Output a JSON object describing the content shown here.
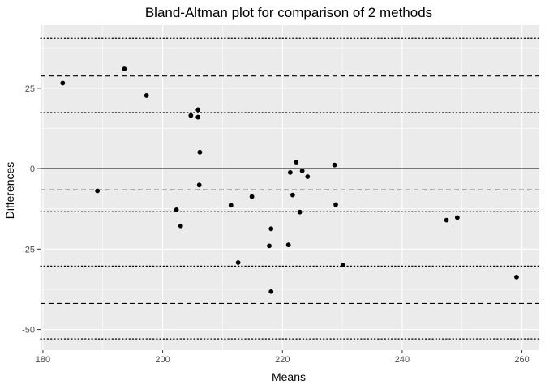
{
  "chart_data": {
    "type": "scatter",
    "title": "Bland-Altman plot for comparison of 2 methods",
    "xlabel": "Means",
    "ylabel": "Differences",
    "xlim": [
      179.6,
      262.9
    ],
    "ylim": [
      -56.4,
      44.6
    ],
    "x_ticks": [
      180,
      200,
      220,
      240,
      260
    ],
    "y_ticks": [
      -50,
      -25,
      0,
      25
    ],
    "grid": true,
    "points": [
      {
        "x": 183.3,
        "y": 26.6
      },
      {
        "x": 189.1,
        "y": -6.9
      },
      {
        "x": 193.6,
        "y": 31.0
      },
      {
        "x": 197.3,
        "y": 22.7
      },
      {
        "x": 202.3,
        "y": -12.8
      },
      {
        "x": 203.0,
        "y": -17.8
      },
      {
        "x": 204.7,
        "y": 16.5
      },
      {
        "x": 205.9,
        "y": 18.3
      },
      {
        "x": 205.9,
        "y": 16.0
      },
      {
        "x": 206.1,
        "y": -5.1
      },
      {
        "x": 206.2,
        "y": 5.1
      },
      {
        "x": 211.4,
        "y": -11.4
      },
      {
        "x": 212.6,
        "y": -29.2
      },
      {
        "x": 214.9,
        "y": -8.7
      },
      {
        "x": 217.8,
        "y": -24.0
      },
      {
        "x": 218.1,
        "y": -18.7
      },
      {
        "x": 218.1,
        "y": -38.2
      },
      {
        "x": 221.0,
        "y": -23.7
      },
      {
        "x": 221.3,
        "y": -1.2
      },
      {
        "x": 221.7,
        "y": -8.2
      },
      {
        "x": 222.3,
        "y": 2.0
      },
      {
        "x": 222.9,
        "y": -13.5
      },
      {
        "x": 223.3,
        "y": -0.7
      },
      {
        "x": 224.2,
        "y": -2.5
      },
      {
        "x": 228.7,
        "y": 1.1
      },
      {
        "x": 228.9,
        "y": -11.2
      },
      {
        "x": 230.1,
        "y": -30.0
      },
      {
        "x": 247.4,
        "y": -16.0
      },
      {
        "x": 249.2,
        "y": -15.2
      },
      {
        "x": 259.1,
        "y": -33.7
      }
    ],
    "reference_lines": [
      {
        "y": 0,
        "style": "solid"
      },
      {
        "y": -6.6,
        "style": "dashed"
      },
      {
        "y": 28.8,
        "style": "dashed"
      },
      {
        "y": -41.9,
        "style": "dashed"
      },
      {
        "y": 17.4,
        "style": "dotted"
      },
      {
        "y": -13.4,
        "style": "dotted"
      },
      {
        "y": 40.5,
        "style": "dotted"
      },
      {
        "y": -30.3,
        "style": "dotted"
      },
      {
        "y": -52.9,
        "style": "dotted"
      }
    ],
    "colors": {
      "panel": "#ebebeb",
      "grid_major": "#ffffff",
      "points": "#000000",
      "tick_label": "#4d4d4d",
      "tick_mark": "#333333"
    }
  }
}
